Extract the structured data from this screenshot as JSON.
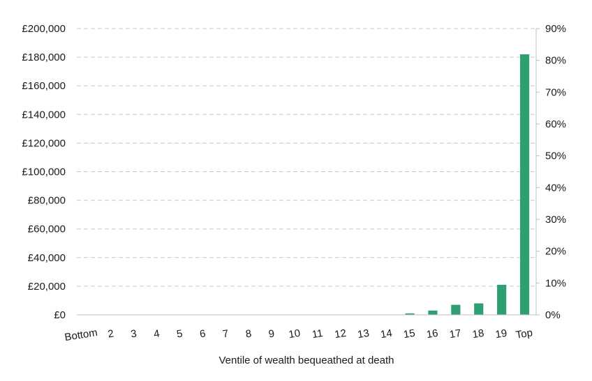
{
  "chart_data": {
    "type": "bar",
    "categories": [
      "Bottom",
      "2",
      "3",
      "4",
      "5",
      "6",
      "7",
      "8",
      "9",
      "10",
      "11",
      "12",
      "13",
      "14",
      "15",
      "16",
      "17",
      "18",
      "19",
      "Top"
    ],
    "values": [
      0,
      0,
      0,
      0,
      0,
      0,
      0,
      0,
      0,
      0,
      0,
      0,
      0,
      0,
      1000,
      3000,
      7000,
      8000,
      21000,
      182000
    ],
    "xlabel": "Ventile of wealth bequeathed at death",
    "ylabel": "",
    "ylim": [
      0,
      200000
    ],
    "y_ticks": [
      "£0",
      "£20,000",
      "£40,000",
      "£60,000",
      "£80,000",
      "£100,000",
      "£120,000",
      "£140,000",
      "£160,000",
      "£180,000",
      "£200,000"
    ],
    "y2lim": [
      0,
      90
    ],
    "y2_ticks": [
      "0%",
      "10%",
      "20%",
      "30%",
      "40%",
      "50%",
      "60%",
      "70%",
      "80%",
      "90%"
    ],
    "grid": true,
    "bar_color": "#2e9e73",
    "gridline_color": "#c8c8c8"
  }
}
